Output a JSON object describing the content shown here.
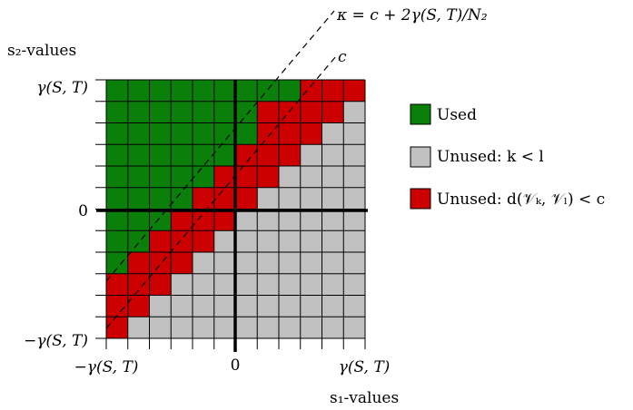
{
  "axes": {
    "x_label": "s₁-values",
    "y_label": "s₂-values",
    "x_ticks": {
      "min": "−γ(S, T)",
      "zero": "0",
      "max": "γ(S, T)"
    },
    "y_ticks": {
      "max": "γ(S, T)",
      "zero": "0",
      "min": "−γ(S, T)"
    }
  },
  "lines": {
    "upper": "κ = c + 2γ(S, T)/N₂",
    "lower": "c"
  },
  "legend": [
    {
      "label": "Used",
      "color": "#0a800a"
    },
    {
      "label": "Unused: k < l",
      "color": "#c0c0c0"
    },
    {
      "label": "Unused: d(𝒱ₖ, 𝒱ₗ) < c",
      "color": "#cc0000"
    }
  ],
  "grid": {
    "n": 12,
    "zero_index": 6,
    "colors": {
      "used": "#0a800a",
      "unused_order": "#c0c0c0",
      "unused_distance": "#cc0000"
    }
  }
}
